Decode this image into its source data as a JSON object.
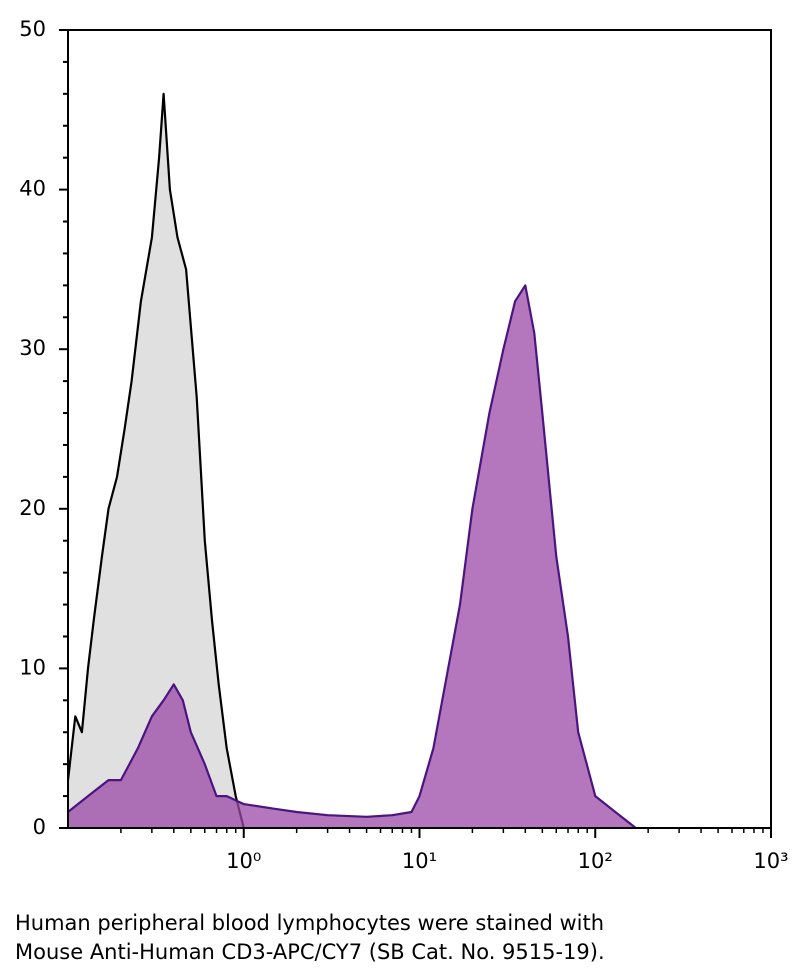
{
  "chart_data": {
    "type": "area",
    "xscale": "log",
    "xlim": [
      0.1,
      1000
    ],
    "xticks": [
      {
        "value": 1,
        "label": "10⁰"
      },
      {
        "value": 10,
        "label": "10¹"
      },
      {
        "value": 100,
        "label": "10²"
      },
      {
        "value": 1000,
        "label": "10³"
      }
    ],
    "ylim": [
      0,
      50
    ],
    "yticks": [
      0,
      10,
      20,
      30,
      40,
      50
    ],
    "series": [
      {
        "color": "#e0e0e0",
        "stroke": "#000000",
        "x": [
          0.1,
          0.11,
          0.12,
          0.13,
          0.14,
          0.156,
          0.17,
          0.19,
          0.21,
          0.23,
          0.26,
          0.3,
          0.33,
          0.35,
          0.38,
          0.42,
          0.47,
          0.54,
          0.6,
          0.66,
          0.72,
          0.8,
          0.9,
          1.0
        ],
        "values": [
          3,
          7,
          6,
          10,
          13,
          17,
          20,
          22,
          25,
          28,
          33,
          37,
          42,
          46,
          40,
          37,
          35,
          27,
          18,
          13,
          9,
          5,
          2,
          0
        ]
      },
      {
        "color": "#9b4aa8",
        "stroke": "#4b1580",
        "x": [
          0.1,
          0.13,
          0.17,
          0.2,
          0.25,
          0.3,
          0.35,
          0.4,
          0.45,
          0.5,
          0.6,
          0.7,
          0.8,
          1,
          1.5,
          2,
          3,
          5,
          7,
          9,
          10,
          12,
          14,
          17,
          20,
          25,
          30,
          35,
          40,
          45,
          50,
          60,
          70,
          80,
          100,
          130,
          170
        ],
        "values": [
          1,
          2,
          3,
          3,
          5,
          7,
          8,
          9,
          8,
          6,
          4,
          2,
          2,
          1.5,
          1.2,
          1,
          0.8,
          0.7,
          0.8,
          1,
          2,
          5,
          9,
          14,
          20,
          26,
          30,
          33,
          34,
          31,
          26,
          17,
          12,
          6,
          2,
          1,
          0
        ]
      }
    ],
    "caption": [
      "Human peripheral blood lymphocytes were stained with",
      "Mouse Anti-Human CD3-APC/CY7 (SB Cat. No. 9515-19)."
    ]
  }
}
